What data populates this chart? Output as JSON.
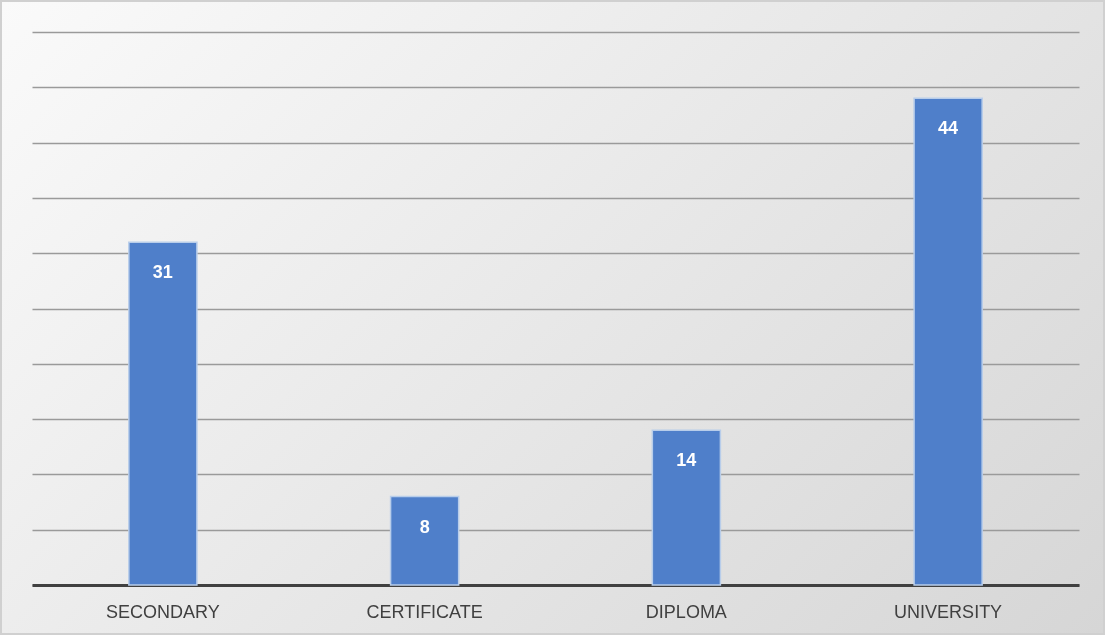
{
  "chart_data": {
    "type": "bar",
    "categories": [
      "SECONDARY",
      "CERTIFICATE",
      "DIPLOMA",
      "UNIVERSITY"
    ],
    "values": [
      31,
      8,
      14,
      44
    ],
    "color": "#4f7fca",
    "ylim": [
      0,
      50
    ],
    "yticks": [
      {
        "value": 0,
        "label": null
      },
      {
        "value": 5,
        "label": null
      },
      {
        "value": 10,
        "label": null
      },
      {
        "value": 15,
        "label": null
      },
      {
        "value": 20,
        "label": null
      },
      {
        "value": 25,
        "label": null
      },
      {
        "value": 30,
        "label": null
      },
      {
        "value": 35,
        "label": null
      },
      {
        "value": 40,
        "label": null
      },
      {
        "value": 45,
        "label": null
      },
      {
        "value": 50,
        "label": null
      }
    ],
    "grid": "y",
    "tick_labels": "x",
    "data_labels": true
  }
}
